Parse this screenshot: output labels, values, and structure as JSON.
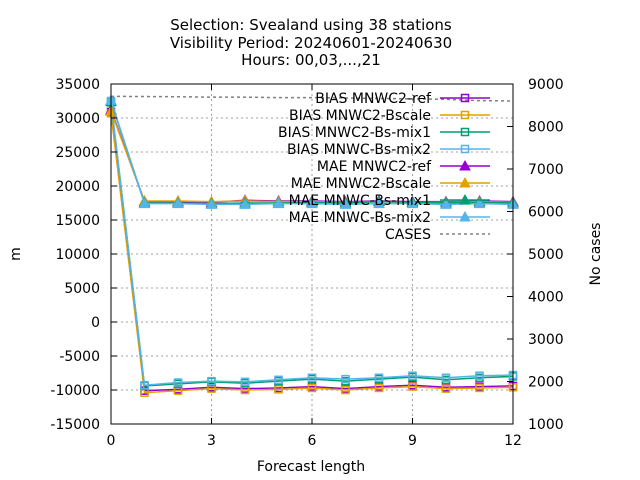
{
  "chart_data": {
    "type": "line",
    "title_lines": [
      "Selection: Svealand using    38 stations",
      "Visibility   Period: 20240601-20240630",
      "Hours: 00,03,...,21"
    ],
    "xlabel": "Forecast length",
    "ylabel": "m",
    "y2label": "No cases",
    "xlim": [
      0,
      12
    ],
    "ylim": [
      -15000,
      35000
    ],
    "y2lim": [
      1000,
      9000
    ],
    "xticks": [
      0,
      3,
      6,
      9,
      12
    ],
    "yticks": [
      -15000,
      -10000,
      -5000,
      0,
      5000,
      10000,
      15000,
      20000,
      25000,
      30000,
      35000
    ],
    "y2ticks": [
      1000,
      2000,
      3000,
      4000,
      5000,
      6000,
      7000,
      8000,
      9000
    ],
    "grid": true,
    "legend_position": "top-right",
    "x": [
      0,
      1,
      2,
      3,
      4,
      5,
      6,
      7,
      8,
      9,
      10,
      11,
      12
    ],
    "series": [
      {
        "name": "BIAS MNWC2-ref",
        "color": "#9400d3",
        "marker": "square-open",
        "axis": "y",
        "values": [
          30900,
          -10100,
          -9900,
          -9600,
          -9800,
          -9700,
          -9500,
          -9800,
          -9500,
          -9300,
          -9600,
          -9500,
          -9400
        ]
      },
      {
        "name": "BIAS MNWC2-Bscale",
        "color": "#e69f00",
        "marker": "square-open",
        "axis": "y",
        "values": [
          30700,
          -10400,
          -10100,
          -9800,
          -10000,
          -9900,
          -9700,
          -10000,
          -9700,
          -9500,
          -9800,
          -9700,
          -9600
        ]
      },
      {
        "name": "BIAS MNWC2-Bs-mix1",
        "color": "#009e73",
        "marker": "square-open",
        "axis": "y",
        "values": [
          32300,
          -9400,
          -9100,
          -8800,
          -9000,
          -8700,
          -8400,
          -8700,
          -8400,
          -8100,
          -8500,
          -8200,
          -8000
        ]
      },
      {
        "name": "BIAS MNWC-Bs-mix2",
        "color": "#56b4e9",
        "marker": "square-open",
        "axis": "y",
        "values": [
          32500,
          -9300,
          -8900,
          -8700,
          -8800,
          -8500,
          -8200,
          -8400,
          -8200,
          -7900,
          -8200,
          -7900,
          -7800
        ]
      },
      {
        "name": "MAE MNWC2-ref",
        "color": "#9400d3",
        "marker": "triangle",
        "axis": "y",
        "values": [
          31200,
          17700,
          17700,
          17600,
          17900,
          17800,
          17800,
          17700,
          17800,
          17700,
          17700,
          17800,
          17700
        ]
      },
      {
        "name": "MAE MNWC2-Bscale",
        "color": "#e69f00",
        "marker": "triangle",
        "axis": "y",
        "values": [
          31000,
          17800,
          17800,
          17700,
          17800,
          17700,
          17700,
          17600,
          17700,
          17600,
          17600,
          17700,
          17600
        ]
      },
      {
        "name": "MAE MNWC-Bs-mix1",
        "color": "#009e73",
        "marker": "triangle",
        "axis": "y",
        "values": [
          32400,
          17500,
          17500,
          17400,
          17500,
          17500,
          17600,
          17500,
          17700,
          17600,
          17500,
          17600,
          17500
        ]
      },
      {
        "name": "MAE MNWC-Bs-mix2",
        "color": "#56b4e9",
        "marker": "triangle",
        "axis": "y",
        "values": [
          32600,
          17400,
          17400,
          17300,
          17300,
          17400,
          17400,
          17300,
          17400,
          17400,
          17300,
          17400,
          17300
        ]
      },
      {
        "name": "CASES",
        "color": "#808080",
        "marker": "none",
        "dashed": true,
        "axis": "y2",
        "values": [
          8710,
          8705,
          8700,
          8690,
          8690,
          8680,
          8680,
          8670,
          8660,
          8650,
          8640,
          8610,
          8600
        ]
      }
    ]
  }
}
